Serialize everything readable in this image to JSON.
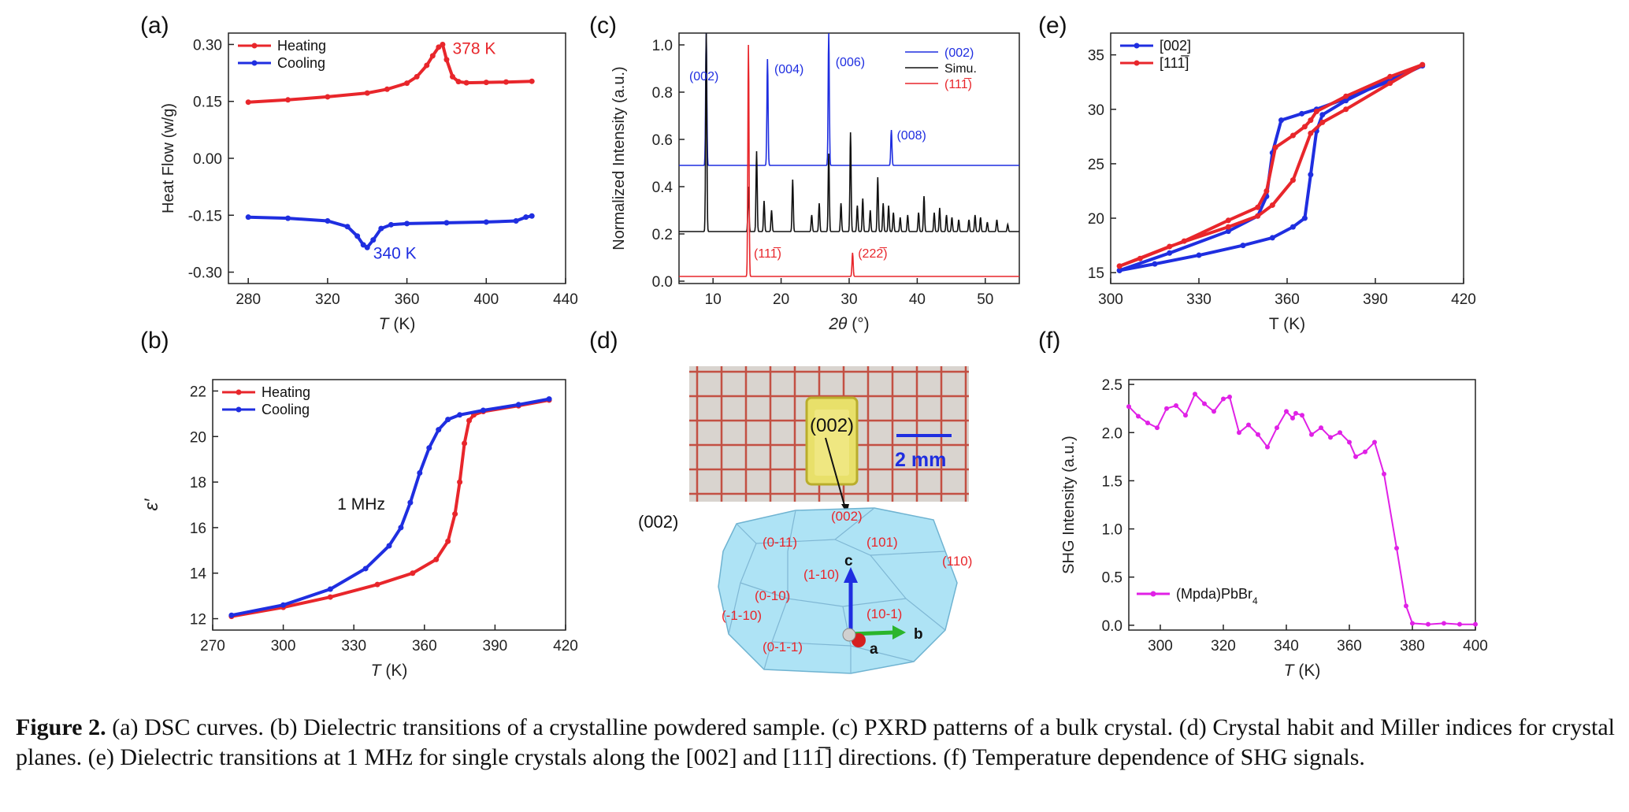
{
  "panels": {
    "a": "(a)",
    "b": "(b)",
    "c": "(c)",
    "d": "(d)",
    "e": "(e)",
    "f": "(f)"
  },
  "caption": {
    "label": "Figure 2.",
    "text": " (a) DSC curves. (b) Dielectric transitions of a crystalline powdered sample. (c) PXRD patterns of a bulk crystal. (d) Crystal habit and Miller indices for crystal planes. (e) Dielectric transitions at 1 MHz for single crystals along the [002] and [111̅] directions. (f) Temperature dependence of SHG signals."
  },
  "colors": {
    "red": "#e8262b",
    "blue": "#1f2ee0",
    "black": "#111111",
    "magenta": "#e021e6"
  },
  "chart_data": [
    {
      "id": "a",
      "type": "line",
      "xlabel_italic": "T",
      "xlabel_unit": " (K)",
      "ylabel": "Heat Flow (w/g)",
      "xlim": [
        270,
        440
      ],
      "ylim": [
        -0.33,
        0.33
      ],
      "xticks": [
        280,
        320,
        360,
        400,
        440
      ],
      "yticks": [
        0.3,
        0.15,
        0.0,
        -0.15,
        -0.3
      ],
      "ytick_labels": [
        "0.30",
        "0.15",
        "0.00",
        "-0.15",
        "-0.30"
      ],
      "legend": "top-left",
      "series": [
        {
          "name": "Heating",
          "color": "#e8262b",
          "x": [
            280,
            300,
            320,
            340,
            350,
            360,
            365,
            370,
            373,
            376,
            378,
            380,
            383,
            386,
            390,
            400,
            410,
            423
          ],
          "y": [
            0.148,
            0.154,
            0.162,
            0.172,
            0.182,
            0.198,
            0.215,
            0.245,
            0.27,
            0.293,
            0.3,
            0.26,
            0.215,
            0.202,
            0.199,
            0.2,
            0.201,
            0.203
          ]
        },
        {
          "name": "Cooling",
          "color": "#1f2ee0",
          "x": [
            280,
            300,
            320,
            330,
            335,
            338,
            340,
            343,
            347,
            352,
            360,
            380,
            400,
            415,
            420,
            423
          ],
          "y": [
            -0.155,
            -0.158,
            -0.165,
            -0.18,
            -0.205,
            -0.228,
            -0.235,
            -0.215,
            -0.185,
            -0.175,
            -0.172,
            -0.17,
            -0.168,
            -0.165,
            -0.155,
            -0.152
          ]
        }
      ],
      "annotations": [
        {
          "text": "378 K",
          "color": "#e8262b",
          "x": 383,
          "y": 0.275
        },
        {
          "text": "340 K",
          "color": "#1f2ee0",
          "x": 343,
          "y": -0.265
        }
      ]
    },
    {
      "id": "b",
      "type": "line",
      "xlabel_italic": "T",
      "xlabel_unit": " (K)",
      "ylabel": "ε′",
      "xlim": [
        270,
        420
      ],
      "ylim": [
        11.5,
        22.5
      ],
      "xticks": [
        270,
        300,
        330,
        360,
        390,
        420
      ],
      "yticks": [
        12,
        14,
        16,
        18,
        20,
        22
      ],
      "legend": "top-left",
      "series": [
        {
          "name": "Heating",
          "color": "#e8262b",
          "x": [
            278,
            300,
            320,
            340,
            355,
            365,
            370,
            373,
            375,
            377,
            379,
            381,
            385,
            400,
            413
          ],
          "y": [
            12.1,
            12.5,
            12.95,
            13.5,
            14.0,
            14.6,
            15.4,
            16.6,
            18.0,
            19.7,
            20.7,
            20.95,
            21.1,
            21.35,
            21.6
          ]
        },
        {
          "name": "Cooling",
          "color": "#1f2ee0",
          "x": [
            278,
            300,
            320,
            335,
            345,
            350,
            354,
            358,
            362,
            366,
            370,
            375,
            385,
            400,
            413
          ],
          "y": [
            12.15,
            12.6,
            13.3,
            14.2,
            15.2,
            16.0,
            17.1,
            18.4,
            19.5,
            20.3,
            20.75,
            20.95,
            21.15,
            21.4,
            21.65
          ]
        }
      ],
      "annotations": [
        {
          "text": "1 MHz",
          "color": "#111111",
          "x": 323,
          "y": 16.8
        }
      ]
    },
    {
      "id": "c",
      "type": "line",
      "xlabel_italic": "2θ",
      "xlabel_unit": " (°)",
      "ylabel": "Normalized Intensity (a.u.)",
      "xlim": [
        5,
        55
      ],
      "ylim": [
        -0.01,
        1.05
      ],
      "xticks": [
        10,
        20,
        30,
        40,
        50
      ],
      "yticks": [
        0.0,
        0.2,
        0.4,
        0.6,
        0.8,
        1.0
      ],
      "ytick_labels": [
        "0.0",
        "0.2",
        "0.4",
        "0.6",
        "0.8",
        "1.0"
      ],
      "legend": "top-right",
      "series": [
        {
          "name": "(002)",
          "color": "#1f2ee0",
          "baseline": 0.49,
          "peaks": [
            [
              9.0,
              1.05
            ],
            [
              18.0,
              0.94
            ],
            [
              27.0,
              1.05
            ],
            [
              36.2,
              0.64
            ]
          ]
        },
        {
          "name": "Simu.",
          "color": "#111111",
          "baseline": 0.21,
          "peaks": [
            [
              9.0,
              1.05
            ],
            [
              15.2,
              0.4
            ],
            [
              16.4,
              0.55
            ],
            [
              17.5,
              0.34
            ],
            [
              18.6,
              0.3
            ],
            [
              21.7,
              0.43
            ],
            [
              24.5,
              0.28
            ],
            [
              25.6,
              0.33
            ],
            [
              27.0,
              0.54
            ],
            [
              28.8,
              0.33
            ],
            [
              30.2,
              0.63
            ],
            [
              31.2,
              0.32
            ],
            [
              32.0,
              0.35
            ],
            [
              33.1,
              0.3
            ],
            [
              34.2,
              0.44
            ],
            [
              35.0,
              0.33
            ],
            [
              35.8,
              0.32
            ],
            [
              36.5,
              0.29
            ],
            [
              37.5,
              0.27
            ],
            [
              38.6,
              0.28
            ],
            [
              40.2,
              0.29
            ],
            [
              41.0,
              0.36
            ],
            [
              42.5,
              0.29
            ],
            [
              43.3,
              0.31
            ],
            [
              44.3,
              0.28
            ],
            [
              45.1,
              0.27
            ],
            [
              46.1,
              0.26
            ],
            [
              47.6,
              0.26
            ],
            [
              48.5,
              0.28
            ],
            [
              49.3,
              0.27
            ],
            [
              50.3,
              0.25
            ],
            [
              51.7,
              0.26
            ],
            [
              53.3,
              0.24
            ]
          ]
        },
        {
          "name": "(111̅)",
          "color": "#e8262b",
          "baseline": 0.02,
          "peaks": [
            [
              15.2,
              1.0
            ],
            [
              30.5,
              0.12
            ]
          ]
        }
      ],
      "annotations": [
        {
          "text": "(002)",
          "color": "#1f2ee0",
          "x": 6.5,
          "y": 0.85
        },
        {
          "text": "(004)",
          "color": "#1f2ee0",
          "x": 19.0,
          "y": 0.88
        },
        {
          "text": "(006)",
          "color": "#1f2ee0",
          "x": 28.0,
          "y": 0.91
        },
        {
          "text": "(008)",
          "color": "#1f2ee0",
          "x": 37.0,
          "y": 0.6
        },
        {
          "text": "(111̅)",
          "color": "#e8262b",
          "x": 16.0,
          "y": 0.1
        },
        {
          "text": "(222̅)",
          "color": "#e8262b",
          "x": 31.3,
          "y": 0.1
        }
      ]
    },
    {
      "id": "e",
      "type": "line",
      "xlabel_italic": "",
      "xlabel_unit": "T (K)",
      "ylabel": "",
      "xlim": [
        300,
        420
      ],
      "ylim": [
        14,
        37
      ],
      "xticks": [
        300,
        330,
        360,
        390,
        420
      ],
      "yticks": [
        15,
        20,
        25,
        30,
        35
      ],
      "legend": "top-left",
      "series": [
        {
          "name": "[002]",
          "color": "#1f2ee0",
          "x": [
            303,
            320,
            340,
            350,
            353,
            355,
            358,
            365,
            370,
            380,
            395,
            406,
            395,
            380,
            372,
            370,
            368,
            366,
            362,
            355,
            345,
            330,
            315,
            303
          ],
          "y": [
            15.2,
            16.8,
            18.8,
            20.2,
            22.0,
            26.0,
            29.0,
            29.6,
            30.0,
            31.0,
            32.6,
            34.0,
            32.8,
            30.8,
            29.5,
            28.0,
            24.0,
            20.0,
            19.2,
            18.2,
            17.5,
            16.6,
            15.8,
            15.2
          ]
        },
        {
          "name": "[111̅]",
          "color": "#e8262b",
          "x": [
            303,
            320,
            340,
            350,
            355,
            362,
            368,
            372,
            380,
            395,
            406,
            395,
            380,
            370,
            368,
            366,
            362,
            356,
            353,
            350,
            340,
            325,
            310,
            303
          ],
          "y": [
            15.6,
            17.4,
            19.2,
            20.2,
            21.2,
            23.5,
            27.8,
            28.8,
            30.0,
            32.4,
            34.1,
            33.0,
            31.2,
            29.8,
            29.0,
            28.4,
            27.6,
            26.5,
            22.5,
            21.0,
            19.8,
            17.9,
            16.3,
            15.6
          ]
        }
      ]
    },
    {
      "id": "f",
      "type": "line",
      "xlabel_italic": "T",
      "xlabel_unit": " (K)",
      "ylabel": "SHG Intensity (a.u.)",
      "xlim": [
        290,
        400
      ],
      "ylim": [
        -0.05,
        2.55
      ],
      "xticks": [
        300,
        320,
        340,
        360,
        380,
        400
      ],
      "yticks": [
        0.0,
        0.5,
        1.0,
        1.5,
        2.0,
        2.5
      ],
      "ytick_labels": [
        "0.0",
        "0.5",
        "1.0",
        "1.5",
        "2.0",
        "2.5"
      ],
      "legend": "bottom-left",
      "series": [
        {
          "name": "(Mpda)PbBr4",
          "color": "#e021e6",
          "x": [
            290,
            293,
            296,
            299,
            302,
            305,
            308,
            311,
            314,
            317,
            320,
            322,
            325,
            328,
            331,
            334,
            337,
            340,
            342,
            343,
            345,
            348,
            351,
            354,
            357,
            360,
            362,
            365,
            368,
            371,
            375,
            378,
            380,
            385,
            390,
            395,
            400
          ],
          "y": [
            2.27,
            2.17,
            2.1,
            2.05,
            2.25,
            2.28,
            2.18,
            2.4,
            2.3,
            2.22,
            2.35,
            2.37,
            2.0,
            2.08,
            1.98,
            1.85,
            2.05,
            2.22,
            2.15,
            2.2,
            2.18,
            1.98,
            2.05,
            1.95,
            2.0,
            1.9,
            1.75,
            1.8,
            1.9,
            1.57,
            0.8,
            0.2,
            0.02,
            0.01,
            0.02,
            0.01,
            0.01
          ]
        }
      ]
    }
  ],
  "figure_d": {
    "scale_label": "2 mm",
    "photo_label": "(002)",
    "side_label": "(002)",
    "faces": [
      "(002)",
      "(0-11)",
      "(101)",
      "(110)",
      "(1-10)",
      "(0-10)",
      "(-1-10)",
      "(10-1)",
      "(0-1-1)"
    ],
    "axes": [
      "c",
      "b",
      "a"
    ]
  }
}
